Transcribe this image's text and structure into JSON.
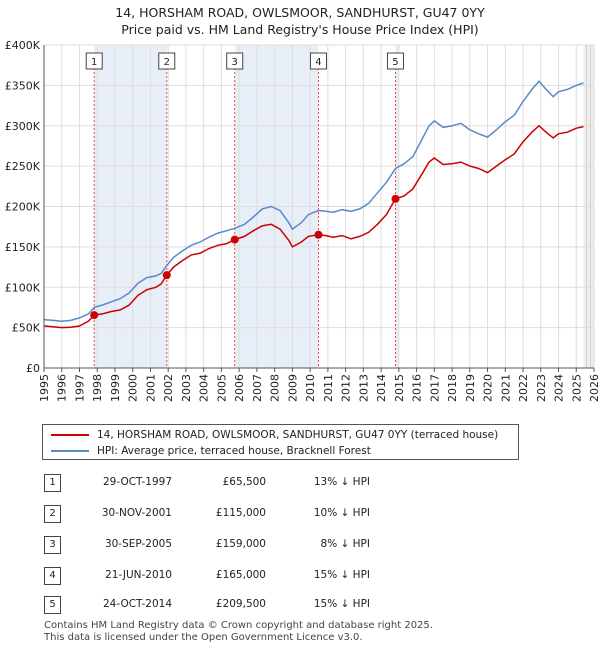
{
  "title_line1": "14, HORSHAM ROAD, OWLSMOOR, SANDHURST, GU47 0YY",
  "title_line2": "Price paid vs. HM Land Registry's House Price Index (HPI)",
  "colors": {
    "price_line": "#cc0000",
    "hpi_line": "#5a8ac6",
    "shade": "#e8eef8",
    "marker_line": "#ee4444"
  },
  "chart_data": {
    "type": "line",
    "ylim": [
      0,
      400000
    ],
    "xlim": [
      1995,
      2026
    ],
    "y_ticks": [
      0,
      50000,
      100000,
      150000,
      200000,
      250000,
      300000,
      350000,
      400000
    ],
    "y_tick_labels": [
      "£0",
      "£50K",
      "£100K",
      "£150K",
      "£200K",
      "£250K",
      "£300K",
      "£350K",
      "£400K"
    ],
    "x_ticks": [
      "1995",
      "1996",
      "1997",
      "1998",
      "1999",
      "2000",
      "2001",
      "2002",
      "2003",
      "2004",
      "2005",
      "2006",
      "2007",
      "2008",
      "2009",
      "2010",
      "2011",
      "2012",
      "2013",
      "2014",
      "2015",
      "2016",
      "2017",
      "2018",
      "2019",
      "2020",
      "2021",
      "2022",
      "2023",
      "2024",
      "2025",
      "2026"
    ],
    "series": [
      {
        "name": "14, HORSHAM ROAD, OWLSMOOR, SANDHURST, GU47 0YY (terraced house)",
        "points": [
          [
            1995.0,
            52000
          ],
          [
            1995.5,
            51000
          ],
          [
            1996.0,
            50000
          ],
          [
            1996.5,
            50500
          ],
          [
            1997.0,
            52000
          ],
          [
            1997.5,
            58000
          ],
          [
            1997.83,
            65500
          ],
          [
            1998.3,
            67000
          ],
          [
            1998.8,
            70000
          ],
          [
            1999.3,
            72000
          ],
          [
            1999.8,
            78000
          ],
          [
            2000.3,
            90000
          ],
          [
            2000.8,
            97000
          ],
          [
            2001.3,
            100000
          ],
          [
            2001.6,
            104000
          ],
          [
            2001.92,
            115000
          ],
          [
            2002.3,
            125000
          ],
          [
            2002.8,
            133000
          ],
          [
            2003.3,
            140000
          ],
          [
            2003.8,
            142000
          ],
          [
            2004.3,
            148000
          ],
          [
            2004.8,
            152000
          ],
          [
            2005.3,
            154000
          ],
          [
            2005.75,
            159000
          ],
          [
            2006.3,
            163000
          ],
          [
            2006.8,
            170000
          ],
          [
            2007.3,
            176000
          ],
          [
            2007.8,
            178000
          ],
          [
            2008.3,
            172000
          ],
          [
            2008.8,
            158000
          ],
          [
            2009.0,
            150000
          ],
          [
            2009.5,
            156000
          ],
          [
            2009.9,
            163000
          ],
          [
            2010.47,
            165000
          ],
          [
            2010.9,
            164000
          ],
          [
            2011.3,
            162000
          ],
          [
            2011.8,
            164000
          ],
          [
            2012.3,
            160000
          ],
          [
            2012.8,
            163000
          ],
          [
            2013.3,
            168000
          ],
          [
            2013.8,
            178000
          ],
          [
            2014.3,
            190000
          ],
          [
            2014.81,
            209500
          ],
          [
            2015.3,
            213000
          ],
          [
            2015.8,
            222000
          ],
          [
            2016.3,
            240000
          ],
          [
            2016.7,
            255000
          ],
          [
            2017.0,
            260000
          ],
          [
            2017.5,
            252000
          ],
          [
            2018.0,
            253000
          ],
          [
            2018.5,
            255000
          ],
          [
            2019.0,
            250000
          ],
          [
            2019.5,
            247000
          ],
          [
            2020.0,
            242000
          ],
          [
            2020.5,
            250000
          ],
          [
            2021.0,
            258000
          ],
          [
            2021.5,
            265000
          ],
          [
            2022.0,
            280000
          ],
          [
            2022.5,
            292000
          ],
          [
            2022.9,
            300000
          ],
          [
            2023.3,
            292000
          ],
          [
            2023.7,
            285000
          ],
          [
            2024.0,
            290000
          ],
          [
            2024.5,
            292000
          ],
          [
            2025.0,
            297000
          ],
          [
            2025.4,
            299000
          ]
        ]
      },
      {
        "name": "HPI: Average price, terraced house, Bracknell Forest",
        "points": [
          [
            1995.0,
            60000
          ],
          [
            1995.5,
            59000
          ],
          [
            1996.0,
            58000
          ],
          [
            1996.5,
            59000
          ],
          [
            1997.0,
            62000
          ],
          [
            1997.5,
            67000
          ],
          [
            1997.83,
            75000
          ],
          [
            1998.3,
            78000
          ],
          [
            1998.8,
            82000
          ],
          [
            1999.3,
            86000
          ],
          [
            1999.8,
            93000
          ],
          [
            2000.3,
            105000
          ],
          [
            2000.8,
            112000
          ],
          [
            2001.3,
            114000
          ],
          [
            2001.6,
            117000
          ],
          [
            2001.92,
            127000
          ],
          [
            2002.3,
            137000
          ],
          [
            2002.8,
            145000
          ],
          [
            2003.3,
            152000
          ],
          [
            2003.8,
            156000
          ],
          [
            2004.3,
            162000
          ],
          [
            2004.8,
            167000
          ],
          [
            2005.3,
            170000
          ],
          [
            2005.75,
            173000
          ],
          [
            2006.3,
            178000
          ],
          [
            2006.8,
            187000
          ],
          [
            2007.3,
            197000
          ],
          [
            2007.8,
            200000
          ],
          [
            2008.3,
            195000
          ],
          [
            2008.8,
            180000
          ],
          [
            2009.0,
            172000
          ],
          [
            2009.5,
            180000
          ],
          [
            2009.9,
            190000
          ],
          [
            2010.47,
            195000
          ],
          [
            2010.9,
            194000
          ],
          [
            2011.3,
            193000
          ],
          [
            2011.8,
            196000
          ],
          [
            2012.3,
            194000
          ],
          [
            2012.8,
            197000
          ],
          [
            2013.3,
            204000
          ],
          [
            2013.8,
            217000
          ],
          [
            2014.3,
            230000
          ],
          [
            2014.81,
            247000
          ],
          [
            2015.3,
            253000
          ],
          [
            2015.8,
            262000
          ],
          [
            2016.3,
            283000
          ],
          [
            2016.7,
            300000
          ],
          [
            2017.0,
            306000
          ],
          [
            2017.5,
            298000
          ],
          [
            2018.0,
            300000
          ],
          [
            2018.5,
            303000
          ],
          [
            2019.0,
            295000
          ],
          [
            2019.5,
            290000
          ],
          [
            2020.0,
            286000
          ],
          [
            2020.5,
            295000
          ],
          [
            2021.0,
            305000
          ],
          [
            2021.5,
            313000
          ],
          [
            2022.0,
            330000
          ],
          [
            2022.5,
            345000
          ],
          [
            2022.9,
            355000
          ],
          [
            2023.3,
            345000
          ],
          [
            2023.7,
            336000
          ],
          [
            2024.0,
            342000
          ],
          [
            2024.5,
            345000
          ],
          [
            2025.0,
            350000
          ],
          [
            2025.4,
            353000
          ]
        ]
      }
    ],
    "markers": [
      {
        "label": "1",
        "x": 1997.83,
        "value": 65500
      },
      {
        "label": "2",
        "x": 2001.92,
        "value": 115000
      },
      {
        "label": "3",
        "x": 2005.75,
        "value": 159000
      },
      {
        "label": "4",
        "x": 2010.47,
        "value": 165000
      },
      {
        "label": "5",
        "x": 2014.81,
        "value": 209500
      }
    ],
    "shaded_ranges": [
      [
        1997.83,
        2001.92
      ],
      [
        2005.75,
        2010.47
      ],
      [
        2014.81,
        2015.0
      ]
    ],
    "projection_start": 2025.4
  },
  "legend": {
    "price_label": "14, HORSHAM ROAD, OWLSMOOR, SANDHURST, GU47 0YY (terraced house)",
    "hpi_label": "HPI: Average price, terraced house, Bracknell Forest"
  },
  "transactions": [
    {
      "num": "1",
      "date": "29-OCT-1997",
      "price": "£65,500",
      "hpi": "13% ↓ HPI"
    },
    {
      "num": "2",
      "date": "30-NOV-2001",
      "price": "£115,000",
      "hpi": "10% ↓ HPI"
    },
    {
      "num": "3",
      "date": "30-SEP-2005",
      "price": "£159,000",
      "hpi": "8% ↓ HPI"
    },
    {
      "num": "4",
      "date": "21-JUN-2010",
      "price": "£165,000",
      "hpi": "15% ↓ HPI"
    },
    {
      "num": "5",
      "date": "24-OCT-2014",
      "price": "£209,500",
      "hpi": "15% ↓ HPI"
    }
  ],
  "footer_line1": "Contains HM Land Registry data © Crown copyright and database right 2025.",
  "footer_line2": "This data is licensed under the Open Government Licence v3.0."
}
